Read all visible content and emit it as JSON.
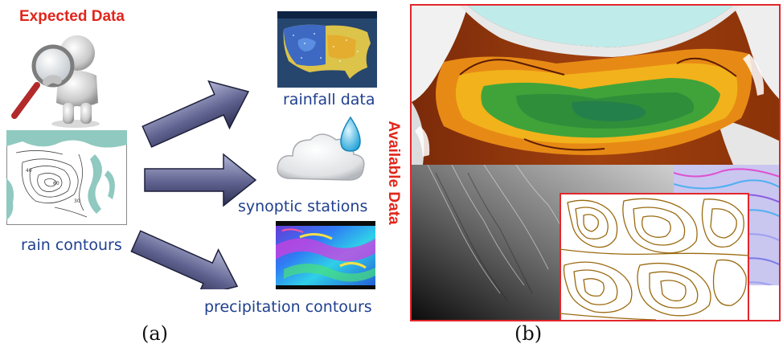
{
  "panel_a": {
    "expected_label": "Expected Data",
    "available_label": "Available Data",
    "sources": {
      "rain_contours": "rain contours",
      "rainfall_data": "rainfall data",
      "synoptic_stations": "synoptic stations",
      "precipitation_contours": "precipitation contours"
    },
    "caption": "(a)"
  },
  "panel_b": {
    "caption": "(b)"
  },
  "colors": {
    "accent_red": "#e3262c",
    "label_blue": "#1f3f8f",
    "arrow_fill": "#5c5f8f"
  },
  "icons": [
    "magnifier-person-icon",
    "rain-cloud-icon"
  ]
}
